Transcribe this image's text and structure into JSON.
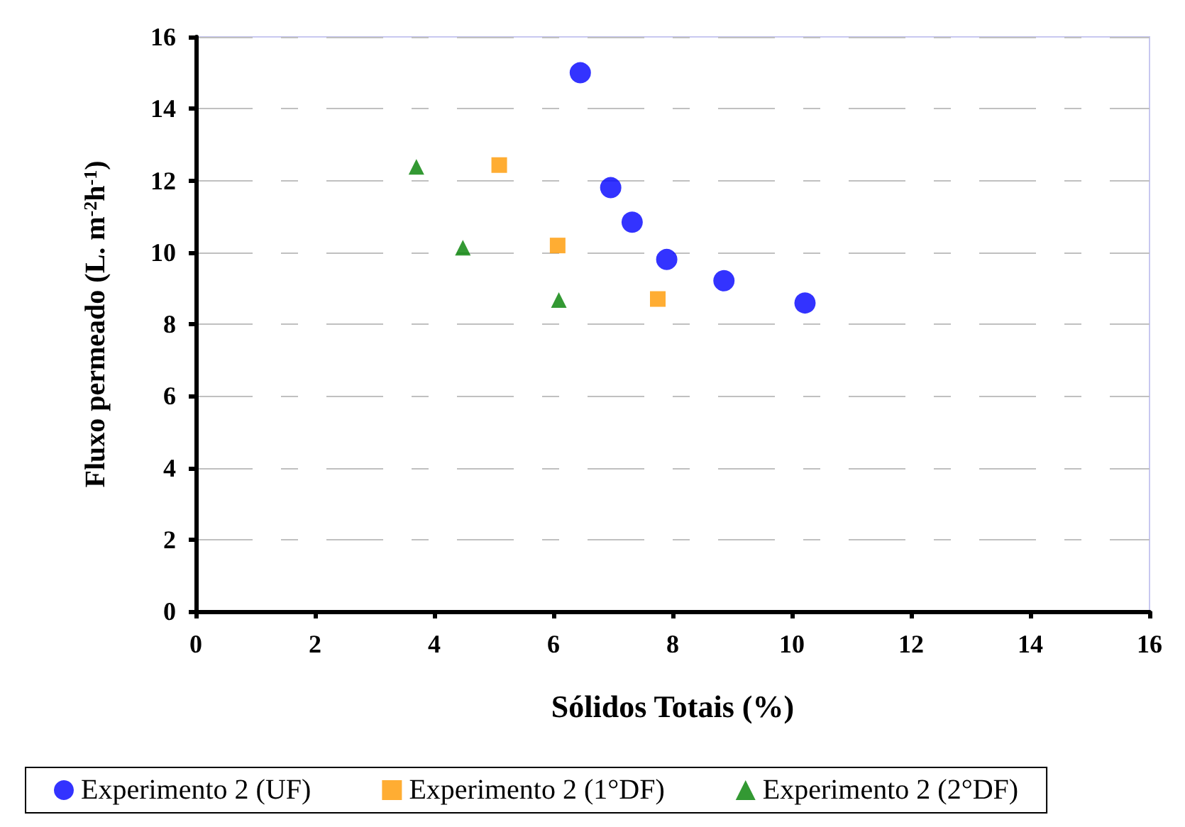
{
  "chart_data": {
    "type": "scatter",
    "xlabel": "Sólidos Totais (%)",
    "ylabel": "Fluxo permeado (L. m$^{-2}$h$^{-1}$)",
    "xlim": [
      0,
      16
    ],
    "xticks": [
      0,
      2,
      4,
      6,
      8,
      10,
      12,
      14,
      16
    ],
    "ylim": [
      0,
      16
    ],
    "yticks": [
      0,
      2,
      4,
      6,
      8,
      10,
      12,
      14,
      16
    ],
    "grid": "y",
    "legend": "bottom",
    "series": [
      {
        "name": "Experimento 2 (UF)",
        "color": "#0000ff",
        "marker": "circle",
        "x": [
          6.45,
          6.96,
          7.32,
          7.9,
          8.86,
          10.22
        ],
        "values": [
          15.0,
          11.8,
          10.84,
          9.8,
          9.21,
          8.59
        ]
      },
      {
        "name": "Experimento 2 (1°DF)",
        "color": "#ff9900",
        "marker": "square",
        "x": [
          5.09,
          6.07,
          7.75
        ],
        "values": [
          12.43,
          10.19,
          8.7
        ]
      },
      {
        "name": "Experimento 2 (2°DF)",
        "color": "#008000",
        "marker": "triangle",
        "x": [
          3.7,
          4.48,
          6.09
        ],
        "values": [
          12.38,
          10.13,
          8.67
        ]
      }
    ]
  }
}
